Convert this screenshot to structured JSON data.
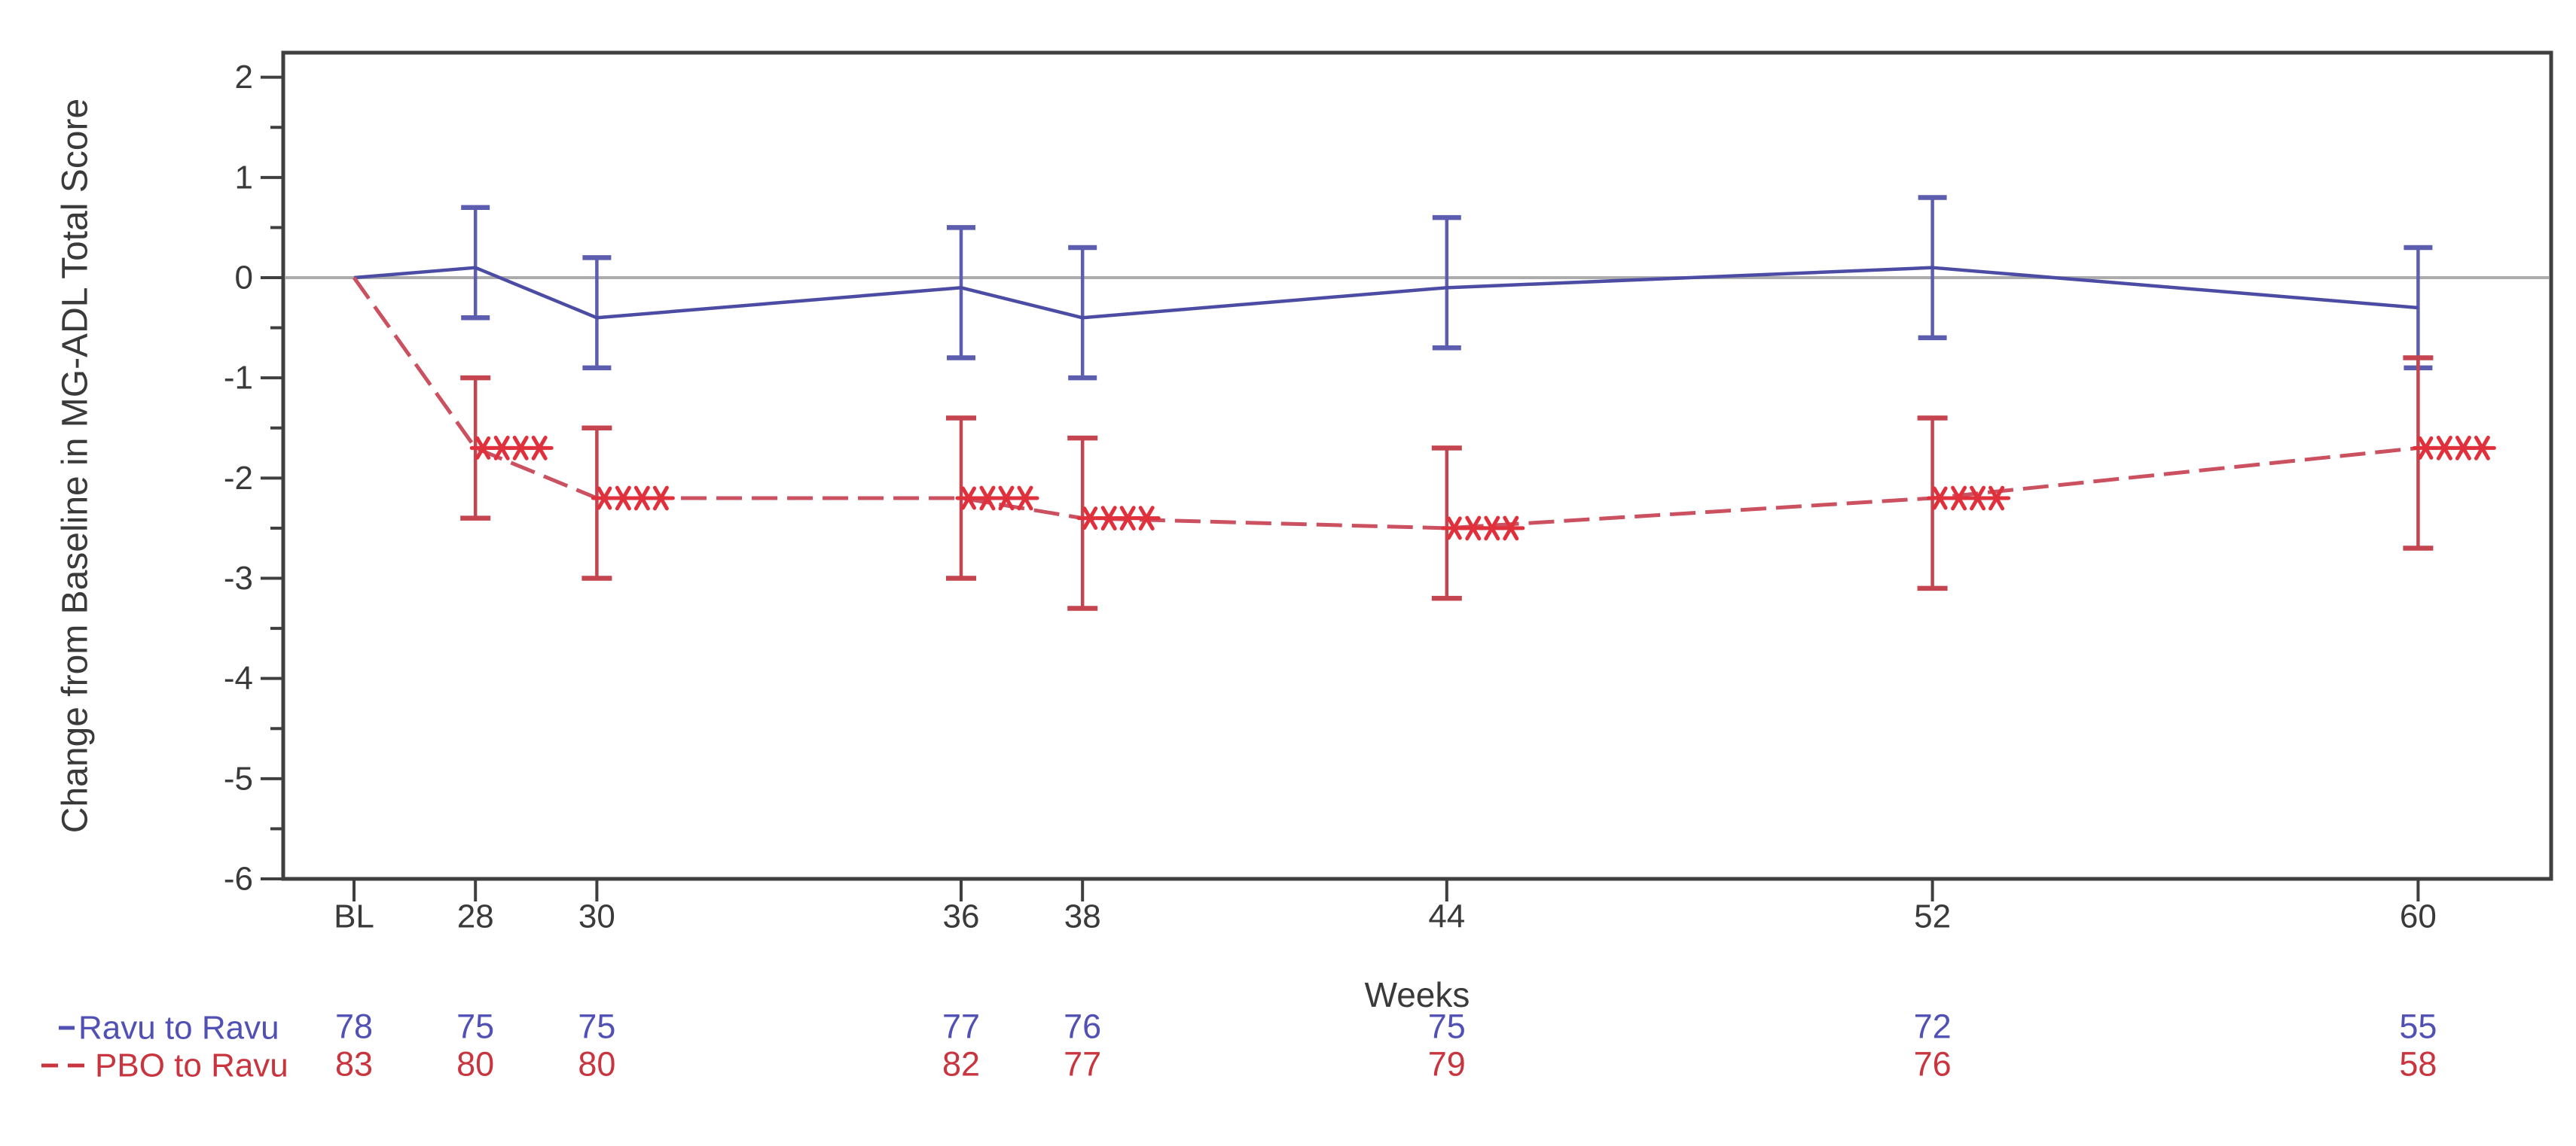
{
  "chart_data": {
    "type": "line",
    "ylabel": "Change from Baseline in MG-ADL Total Score",
    "xlabel": "Weeks",
    "background": "#FFFFFF",
    "axis_color": "#3F3F3F",
    "tick_text_color": "#3A3A3A",
    "zero_line_color": "#ACACAC",
    "grid": "off",
    "reference_line_y": 0,
    "y_axis": {
      "min": -6,
      "max": 2,
      "major_step": 1,
      "minor_step": 0.5,
      "major_tick_labels": [
        "2",
        "1",
        "0",
        "-1",
        "-2",
        "-3",
        "-4",
        "-5",
        "-6"
      ]
    },
    "x_ticks": [
      {
        "label": "BL",
        "week": 26
      },
      {
        "label": "28",
        "week": 28
      },
      {
        "label": "30",
        "week": 30
      },
      {
        "label": "36",
        "week": 36
      },
      {
        "label": "38",
        "week": 38
      },
      {
        "label": "44",
        "week": 44
      },
      {
        "label": "52",
        "week": 52
      },
      {
        "label": "60",
        "week": 60
      }
    ],
    "series": [
      {
        "name": "Ravu to Ravu",
        "legend_label": "-Ravu to Ravu",
        "line_style": "solid",
        "color": "#4C4CA4",
        "error_color": "#5D5DB0",
        "text_color": "#5151B5",
        "marker": "none",
        "points": [
          {
            "x_label": "BL",
            "week": 26,
            "y": 0,
            "lo": null,
            "hi": null,
            "sig": false
          },
          {
            "x_label": "28",
            "week": 28,
            "y": 0.1,
            "lo": -0.4,
            "hi": 0.7,
            "sig": false
          },
          {
            "x_label": "30",
            "week": 30,
            "y": -0.4,
            "lo": -0.9,
            "hi": 0.2,
            "sig": false
          },
          {
            "x_label": "36",
            "week": 36,
            "y": -0.1,
            "lo": -0.8,
            "hi": 0.5,
            "sig": false
          },
          {
            "x_label": "38",
            "week": 38,
            "y": -0.4,
            "lo": -1.0,
            "hi": 0.3,
            "sig": false
          },
          {
            "x_label": "44",
            "week": 44,
            "y": -0.1,
            "lo": -0.7,
            "hi": 0.6,
            "sig": false
          },
          {
            "x_label": "52",
            "week": 52,
            "y": 0.1,
            "lo": -0.6,
            "hi": 0.8,
            "sig": false
          },
          {
            "x_label": "60",
            "week": 60,
            "y": -0.3,
            "lo": -0.9,
            "hi": 0.3,
            "sig": false
          }
        ],
        "n_values": [
          "78",
          "75",
          "75",
          "77",
          "76",
          "75",
          "72",
          "55"
        ]
      },
      {
        "name": "PBO to Ravu",
        "legend_label": "- - PBO to Ravu",
        "line_style": "dashed",
        "color": "#CB5060",
        "error_color": "#C4454F",
        "text_color": "#C9353F",
        "marker": "asterisk",
        "marker_color": "#E0303C",
        "significance_label": "***",
        "points": [
          {
            "x_label": "BL",
            "week": 26,
            "y": 0,
            "lo": null,
            "hi": null,
            "sig": false
          },
          {
            "x_label": "28",
            "week": 28,
            "y": -1.7,
            "lo": -2.4,
            "hi": -1.0,
            "sig": true
          },
          {
            "x_label": "30",
            "week": 30,
            "y": -2.2,
            "lo": -3.0,
            "hi": -1.5,
            "sig": true
          },
          {
            "x_label": "36",
            "week": 36,
            "y": -2.2,
            "lo": -3.0,
            "hi": -1.4,
            "sig": true
          },
          {
            "x_label": "38",
            "week": 38,
            "y": -2.4,
            "lo": -3.3,
            "hi": -1.6,
            "sig": true
          },
          {
            "x_label": "44",
            "week": 44,
            "y": -2.5,
            "lo": -3.2,
            "hi": -1.7,
            "sig": true
          },
          {
            "x_label": "52",
            "week": 52,
            "y": -2.2,
            "lo": -3.1,
            "hi": -1.4,
            "sig": true
          },
          {
            "x_label": "60",
            "week": 60,
            "y": -1.7,
            "lo": -2.7,
            "hi": -0.8,
            "sig": true
          }
        ],
        "n_values": [
          "83",
          "80",
          "80",
          "82",
          "77",
          "79",
          "76",
          "58"
        ]
      }
    ]
  }
}
